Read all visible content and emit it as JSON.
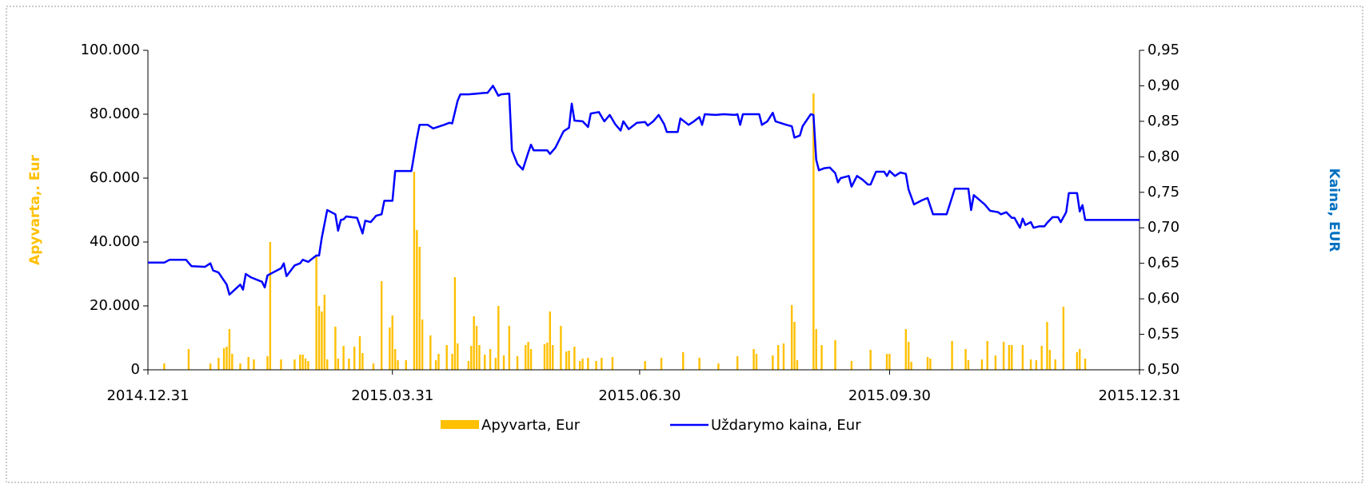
{
  "chart_data": {
    "type": "bar-line",
    "y_label": "Apyvarta,. Eur",
    "y2_label": "Kaina, EUR",
    "xlim": [
      "2014.12.31",
      "2015.12.31"
    ],
    "xticks": [
      "2014.12.31",
      "2015.03.31",
      "2015.06.30",
      "2015.09.30",
      "2015.12.31"
    ],
    "ylim": [
      0,
      100000
    ],
    "yticks": [
      0,
      {
        "value": 20000,
        "label": "20.000"
      },
      {
        "value": 40000,
        "label": "40.000"
      },
      {
        "value": 60000,
        "label": "60.000"
      },
      {
        "value": 80000,
        "label": "80.000"
      },
      {
        "value": 100000,
        "label": "100.000"
      }
    ],
    "y2lim": [
      0.5,
      0.95
    ],
    "y2ticks": [
      {
        "value": 0.5,
        "label": "0,50"
      },
      {
        "value": 0.55,
        "label": "0,55"
      },
      {
        "value": 0.6,
        "label": "0,60"
      },
      {
        "value": 0.65,
        "label": "0,65"
      },
      {
        "value": 0.7,
        "label": "0,70"
      },
      {
        "value": 0.75,
        "label": "0,75"
      },
      {
        "value": 0.8,
        "label": "0,80"
      },
      {
        "value": 0.85,
        "label": "0,85"
      },
      {
        "value": 0.9,
        "label": "0,90"
      },
      {
        "value": 0.95,
        "label": "0,95"
      }
    ],
    "series": [
      {
        "name": "Apyvarta, Eur",
        "type": "bar",
        "color": "#ffc000",
        "x": [
          "2015.01.06",
          "2015.01.15",
          "2015.01.23",
          "2015.01.26",
          "2015.01.28",
          "2015.01.29",
          "2015.01.30",
          "2015.01.31",
          "2015.02.03",
          "2015.02.06",
          "2015.02.08",
          "2015.02.13",
          "2015.02.14",
          "2015.02.18",
          "2015.02.23",
          "2015.02.25",
          "2015.02.26",
          "2015.02.27",
          "2015.02.28",
          "2015.03.03",
          "2015.03.04",
          "2015.03.05",
          "2015.03.06",
          "2015.03.07",
          "2015.03.10",
          "2015.03.11",
          "2015.03.13",
          "2015.03.15",
          "2015.03.17",
          "2015.03.19",
          "2015.03.20",
          "2015.03.24",
          "2015.03.27",
          "2015.03.30",
          "2015.03.31",
          "2015.04.01",
          "2015.04.02",
          "2015.04.05",
          "2015.04.08",
          "2015.04.09",
          "2015.04.10",
          "2015.04.11",
          "2015.04.14",
          "2015.04.16",
          "2015.04.17",
          "2015.04.20",
          "2015.04.22",
          "2015.04.23",
          "2015.04.24",
          "2015.04.28",
          "2015.04.29",
          "2015.04.30",
          "2015.05.01",
          "2015.05.02",
          "2015.05.04",
          "2015.05.06",
          "2015.05.08",
          "2015.05.09",
          "2015.05.11",
          "2015.05.13",
          "2015.05.16",
          "2015.05.19",
          "2015.05.20",
          "2015.05.21",
          "2015.05.26",
          "2015.05.27",
          "2015.05.28",
          "2015.05.29",
          "2015.06.01",
          "2015.06.03",
          "2015.06.04",
          "2015.06.06",
          "2015.06.08",
          "2015.06.09",
          "2015.06.11",
          "2015.06.14",
          "2015.06.16",
          "2015.06.20",
          "2015.07.02",
          "2015.07.08",
          "2015.07.16",
          "2015.07.22",
          "2015.07.29",
          "2015.08.05",
          "2015.08.11",
          "2015.08.12",
          "2015.08.18",
          "2015.08.20",
          "2015.08.22",
          "2015.08.25",
          "2015.08.26",
          "2015.08.27",
          "2015.09.02",
          "2015.09.03",
          "2015.09.05",
          "2015.09.10",
          "2015.09.16",
          "2015.09.23",
          "2015.09.29",
          "2015.09.30",
          "2015.10.06",
          "2015.10.07",
          "2015.10.08",
          "2015.10.14",
          "2015.10.15",
          "2015.10.23",
          "2015.10.28",
          "2015.10.29",
          "2015.11.03",
          "2015.11.05",
          "2015.11.08",
          "2015.11.11",
          "2015.11.13",
          "2015.11.14",
          "2015.11.18",
          "2015.11.21",
          "2015.11.23",
          "2015.11.25",
          "2015.11.27",
          "2015.11.28",
          "2015.11.30",
          "2015.12.03",
          "2015.12.08",
          "2015.12.09",
          "2015.12.11"
        ],
        "values": [
          2000,
          6500,
          2000,
          3750,
          6750,
          7250,
          12750,
          5000,
          2000,
          4000,
          3250,
          4250,
          40000,
          3250,
          3250,
          4750,
          4750,
          3500,
          2750,
          35750,
          20000,
          18250,
          23500,
          3250,
          13500,
          3500,
          7500,
          3500,
          7250,
          10500,
          5250,
          2000,
          27750,
          13250,
          17000,
          6500,
          3000,
          3000,
          62000,
          43750,
          38500,
          15750,
          10750,
          3000,
          5000,
          7750,
          5000,
          29000,
          8250,
          2750,
          7500,
          16750,
          13750,
          7750,
          4750,
          6500,
          3750,
          20000,
          4500,
          13750,
          4250,
          7750,
          8750,
          6500,
          8000,
          8500,
          18250,
          7750,
          13750,
          5750,
          6000,
          7250,
          2750,
          3500,
          3750,
          2750,
          3750,
          4000,
          2750,
          3750,
          5500,
          3750,
          2000,
          4250,
          6500,
          5000,
          4500,
          7750,
          8250,
          20250,
          15000,
          3000,
          86500,
          12750,
          7750,
          9250,
          2750,
          6250,
          5000,
          5000,
          12750,
          8750,
          2500,
          4000,
          3500,
          9000,
          6500,
          3000,
          3250,
          9000,
          4500,
          8750,
          7750,
          7750,
          7750,
          3250,
          3000,
          7500,
          15000,
          6250,
          3250,
          19750,
          5500,
          6500,
          3500
        ]
      },
      {
        "name": "Uždarymo kaina, Eur",
        "type": "line",
        "axis": "y2",
        "color": "#0000ff",
        "x": [
          "2014.12.31",
          "2015.01.06",
          "2015.01.08",
          "2015.01.14",
          "2015.01.16",
          "2015.01.21",
          "2015.01.23",
          "2015.01.24",
          "2015.01.26",
          "2015.01.29",
          "2015.01.30",
          "2015.02.03",
          "2015.02.04",
          "2015.02.05",
          "2015.02.07",
          "2015.02.11",
          "2015.02.12",
          "2015.02.13",
          "2015.02.18",
          "2015.02.19",
          "2015.02.20",
          "2015.02.23",
          "2015.02.25",
          "2015.02.26",
          "2015.02.28",
          "2015.03.03",
          "2015.03.04",
          "2015.03.05",
          "2015.03.07",
          "2015.03.10",
          "2015.03.11",
          "2015.03.12",
          "2015.03.13",
          "2015.03.14",
          "2015.03.18",
          "2015.03.20",
          "2015.03.21",
          "2015.03.23",
          "2015.03.25",
          "2015.03.27",
          "2015.03.28",
          "2015.03.31",
          "2015.04.01",
          "2015.04.07",
          "2015.04.09",
          "2015.04.10",
          "2015.04.13",
          "2015.04.15",
          "2015.04.19",
          "2015.04.21",
          "2015.04.22",
          "2015.04.24",
          "2015.04.25",
          "2015.04.28",
          "2015.05.01",
          "2015.05.04",
          "2015.05.05",
          "2015.05.07",
          "2015.05.09",
          "2015.05.10",
          "2015.05.13",
          "2015.05.14",
          "2015.05.16",
          "2015.05.18",
          "2015.05.20",
          "2015.05.21",
          "2015.05.22",
          "2015.05.27",
          "2015.05.28",
          "2015.05.30",
          "2015.06.02",
          "2015.06.04",
          "2015.06.05",
          "2015.06.06",
          "2015.06.09",
          "2015.06.11",
          "2015.06.12",
          "2015.06.15",
          "2015.06.17",
          "2015.06.19",
          "2015.06.21",
          "2015.06.23",
          "2015.06.24",
          "2015.06.26",
          "2015.06.29",
          "2015.07.02",
          "2015.07.03",
          "2015.07.05",
          "2015.07.07",
          "2015.07.09",
          "2015.07.10",
          "2015.07.14",
          "2015.07.15",
          "2015.07.18",
          "2015.07.20",
          "2015.07.22",
          "2015.07.23",
          "2015.07.24",
          "2015.07.28",
          "2015.07.31",
          "2015.08.04",
          "2015.08.05",
          "2015.08.06",
          "2015.08.07",
          "2015.08.13",
          "2015.08.14",
          "2015.08.16",
          "2015.08.18",
          "2015.08.19",
          "2015.08.23",
          "2015.08.25",
          "2015.08.26",
          "2015.08.28",
          "2015.08.29",
          "2015.09.01",
          "2015.09.02",
          "2015.09.03",
          "2015.09.04",
          "2015.09.06",
          "2015.09.08",
          "2015.09.10",
          "2015.09.11",
          "2015.09.12",
          "2015.09.15",
          "2015.09.16",
          "2015.09.18",
          "2015.09.20",
          "2015.09.22",
          "2015.09.23",
          "2015.09.25",
          "2015.09.28",
          "2015.09.29",
          "2015.09.30",
          "2015.10.02",
          "2015.10.04",
          "2015.10.06",
          "2015.10.07",
          "2015.10.09",
          "2015.10.12",
          "2015.10.14",
          "2015.10.16",
          "2015.10.21",
          "2015.10.24",
          "2015.10.29",
          "2015.10.30",
          "2015.10.31",
          "2015.11.04",
          "2015.11.06",
          "2015.11.09",
          "2015.11.10",
          "2015.11.12",
          "2015.11.14",
          "2015.11.15",
          "2015.11.17",
          "2015.11.18",
          "2015.11.19",
          "2015.11.21",
          "2015.11.22",
          "2015.11.24",
          "2015.11.26",
          "2015.11.27",
          "2015.11.29",
          "2015.12.01",
          "2015.12.02",
          "2015.12.04",
          "2015.12.05",
          "2015.12.08",
          "2015.12.09",
          "2015.12.10",
          "2015.12.11",
          "2015.12.31"
        ],
        "values": [
          0.651,
          0.651,
          0.655,
          0.655,
          0.646,
          0.645,
          0.65,
          0.64,
          0.637,
          0.62,
          0.606,
          0.62,
          0.613,
          0.635,
          0.63,
          0.624,
          0.616,
          0.633,
          0.643,
          0.65,
          0.632,
          0.647,
          0.65,
          0.655,
          0.652,
          0.661,
          0.661,
          0.686,
          0.725,
          0.719,
          0.696,
          0.711,
          0.712,
          0.716,
          0.714,
          0.692,
          0.71,
          0.708,
          0.717,
          0.719,
          0.738,
          0.738,
          0.78,
          0.78,
          0.826,
          0.845,
          0.845,
          0.84,
          0.845,
          0.848,
          0.847,
          0.879,
          0.888,
          0.888,
          0.889,
          0.89,
          0.89,
          0.9,
          0.886,
          0.888,
          0.889,
          0.809,
          0.79,
          0.782,
          0.806,
          0.817,
          0.809,
          0.809,
          0.804,
          0.813,
          0.836,
          0.841,
          0.875,
          0.851,
          0.85,
          0.842,
          0.861,
          0.863,
          0.85,
          0.859,
          0.846,
          0.837,
          0.85,
          0.839,
          0.848,
          0.849,
          0.844,
          0.85,
          0.859,
          0.846,
          0.835,
          0.835,
          0.854,
          0.845,
          0.85,
          0.856,
          0.845,
          0.86,
          0.859,
          0.86,
          0.859,
          0.86,
          0.845,
          0.86,
          0.86,
          0.845,
          0.85,
          0.862,
          0.85,
          0.845,
          0.843,
          0.827,
          0.83,
          0.843,
          0.86,
          0.859,
          0.796,
          0.781,
          0.784,
          0.785,
          0.777,
          0.764,
          0.77,
          0.773,
          0.758,
          0.773,
          0.768,
          0.761,
          0.761,
          0.779,
          0.779,
          0.773,
          0.78,
          0.773,
          0.778,
          0.776,
          0.754,
          0.733,
          0.739,
          0.742,
          0.719,
          0.719,
          0.755,
          0.755,
          0.725,
          0.746,
          0.733,
          0.724,
          0.722,
          0.719,
          0.722,
          0.714,
          0.714,
          0.7,
          0.713,
          0.704,
          0.708,
          0.7,
          0.702,
          0.702,
          0.707,
          0.715,
          0.715,
          0.708,
          0.722,
          0.749,
          0.749,
          0.723,
          0.732,
          0.711,
          0.711
        ]
      }
    ]
  }
}
